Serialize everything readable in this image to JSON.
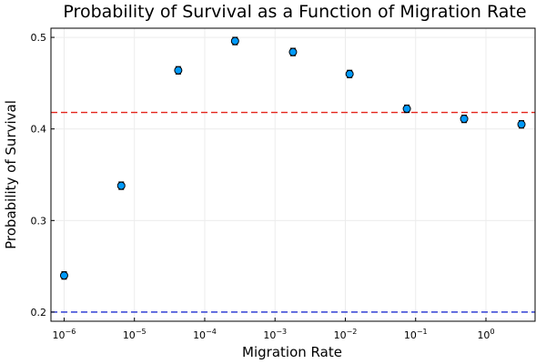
{
  "chart_data": {
    "type": "scatter",
    "title": "Probability of Survival as a Function of Migration Rate",
    "xlabel": "Migration Rate",
    "ylabel": "Probability of Survival",
    "xscale": "log10",
    "xlim": [
      6.5e-07,
      5.0
    ],
    "ylim": [
      0.19,
      0.51
    ],
    "grid": true,
    "x_ticks": [
      {
        "base": "10",
        "exp": "−6",
        "value": 1e-06
      },
      {
        "base": "10",
        "exp": "−5",
        "value": 1e-05
      },
      {
        "base": "10",
        "exp": "−4",
        "value": 0.0001
      },
      {
        "base": "10",
        "exp": "−3",
        "value": 0.001
      },
      {
        "base": "10",
        "exp": "−2",
        "value": 0.01
      },
      {
        "base": "10",
        "exp": "−1",
        "value": 0.1
      },
      {
        "base": "10",
        "exp": "0",
        "value": 1
      }
    ],
    "y_ticks": [
      {
        "label": "0.2",
        "value": 0.2
      },
      {
        "label": "0.3",
        "value": 0.3
      },
      {
        "label": "0.4",
        "value": 0.4
      },
      {
        "label": "0.5",
        "value": 0.5
      }
    ],
    "series": [
      {
        "color": "#009AFA",
        "points": [
          {
            "x": 1e-06,
            "y": 0.24,
            "err": 0.004
          },
          {
            "x": 6.5e-06,
            "y": 0.338,
            "err": 0.004
          },
          {
            "x": 4.2e-05,
            "y": 0.464,
            "err": 0.004
          },
          {
            "x": 0.00027,
            "y": 0.496,
            "err": 0.004
          },
          {
            "x": 0.0018,
            "y": 0.484,
            "err": 0.004
          },
          {
            "x": 0.0115,
            "y": 0.46,
            "err": 0.004
          },
          {
            "x": 0.075,
            "y": 0.422,
            "err": 0.004
          },
          {
            "x": 0.49,
            "y": 0.411,
            "err": 0.004
          },
          {
            "x": 3.2,
            "y": 0.405,
            "err": 0.004
          }
        ]
      }
    ],
    "hlines": [
      {
        "y": 0.418,
        "color": "#E3241B",
        "style": "dashed"
      },
      {
        "y": 0.2,
        "color": "#1F2DD1",
        "style": "dashed"
      }
    ]
  }
}
